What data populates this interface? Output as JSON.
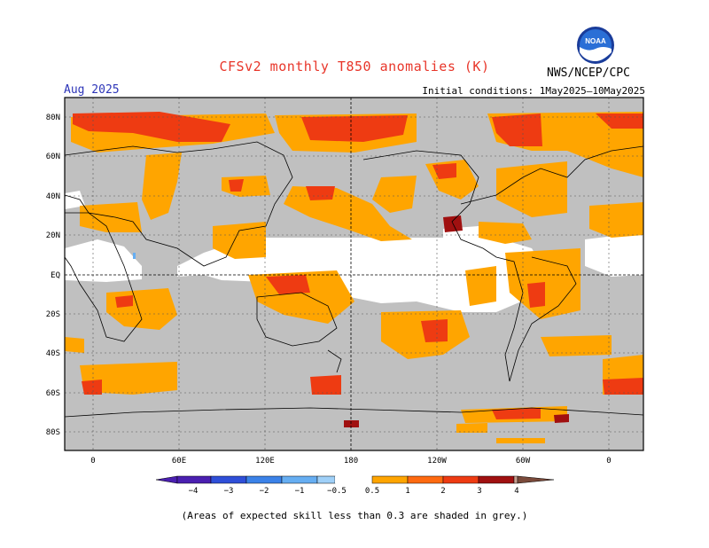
{
  "header": {
    "title": "CFSv2 monthly T850 anomalies (K)",
    "agency": "NWS/NCEP/CPC",
    "valid_month": "Aug 2025",
    "initial_conditions": "Initial conditions: 1May2025–10May2025",
    "logo_text": "NOAA"
  },
  "map": {
    "lat_labels": [
      "80N",
      "60N",
      "40N",
      "20N",
      "EQ",
      "20S",
      "40S",
      "60S",
      "80S"
    ],
    "lon_labels": [
      "0",
      "60E",
      "120E",
      "180",
      "120W",
      "60W",
      "0"
    ]
  },
  "colorbar": {
    "labels": [
      "−4",
      "−3",
      "−2",
      "−1",
      "−0.5",
      "0.5",
      "1",
      "2",
      "3",
      "4"
    ],
    "colors": {
      "c_m4": "#4a1fb0",
      "c_m3": "#2f4fd8",
      "c_m2": "#3b82e8",
      "c_m1": "#66aef2",
      "c_neutral": "#ffffff",
      "c_p05": "#ffa500",
      "c_p1": "#ff7518",
      "c_p2": "#ee3b12",
      "c_p3": "#a01010",
      "c_p4": "#c8a090",
      "c_p4plus": "#7a4a3a"
    }
  },
  "footnote": "(Areas of expected skill less than 0.3 are shaded in grey.)"
}
